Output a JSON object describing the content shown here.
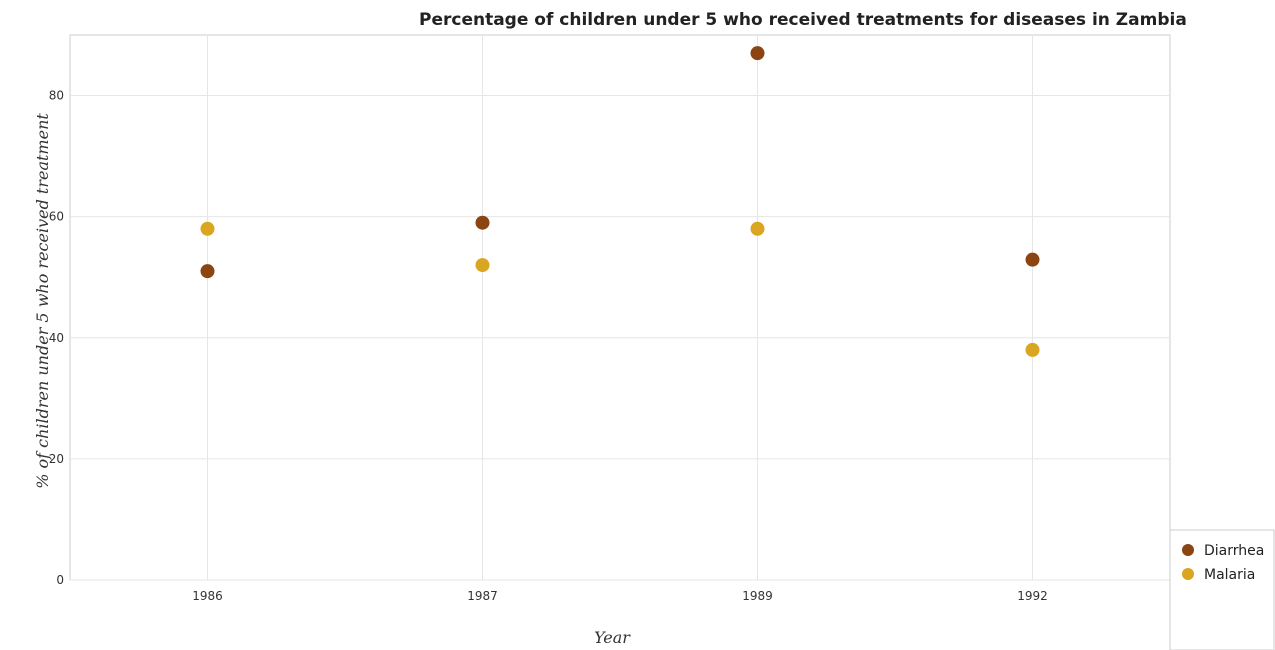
{
  "chart_data": {
    "type": "scatter",
    "title": "Percentage of children under 5 who received treatments for diseases in Zambia",
    "xlabel": "Year",
    "ylabel": "% of children under 5 who received treatment",
    "categories": [
      "1986",
      "1987",
      "1989",
      "1992"
    ],
    "ylim": [
      0,
      90
    ],
    "yticks": [
      0,
      20,
      40,
      60,
      80
    ],
    "grid": true,
    "legend_position": "bottom-right",
    "series": [
      {
        "name": "Diarrhea",
        "color": "#8b4513",
        "values": [
          51,
          59,
          87,
          52.9
        ]
      },
      {
        "name": "Malaria",
        "color": "#daa520",
        "values": [
          58,
          52,
          58,
          38
        ]
      }
    ]
  }
}
